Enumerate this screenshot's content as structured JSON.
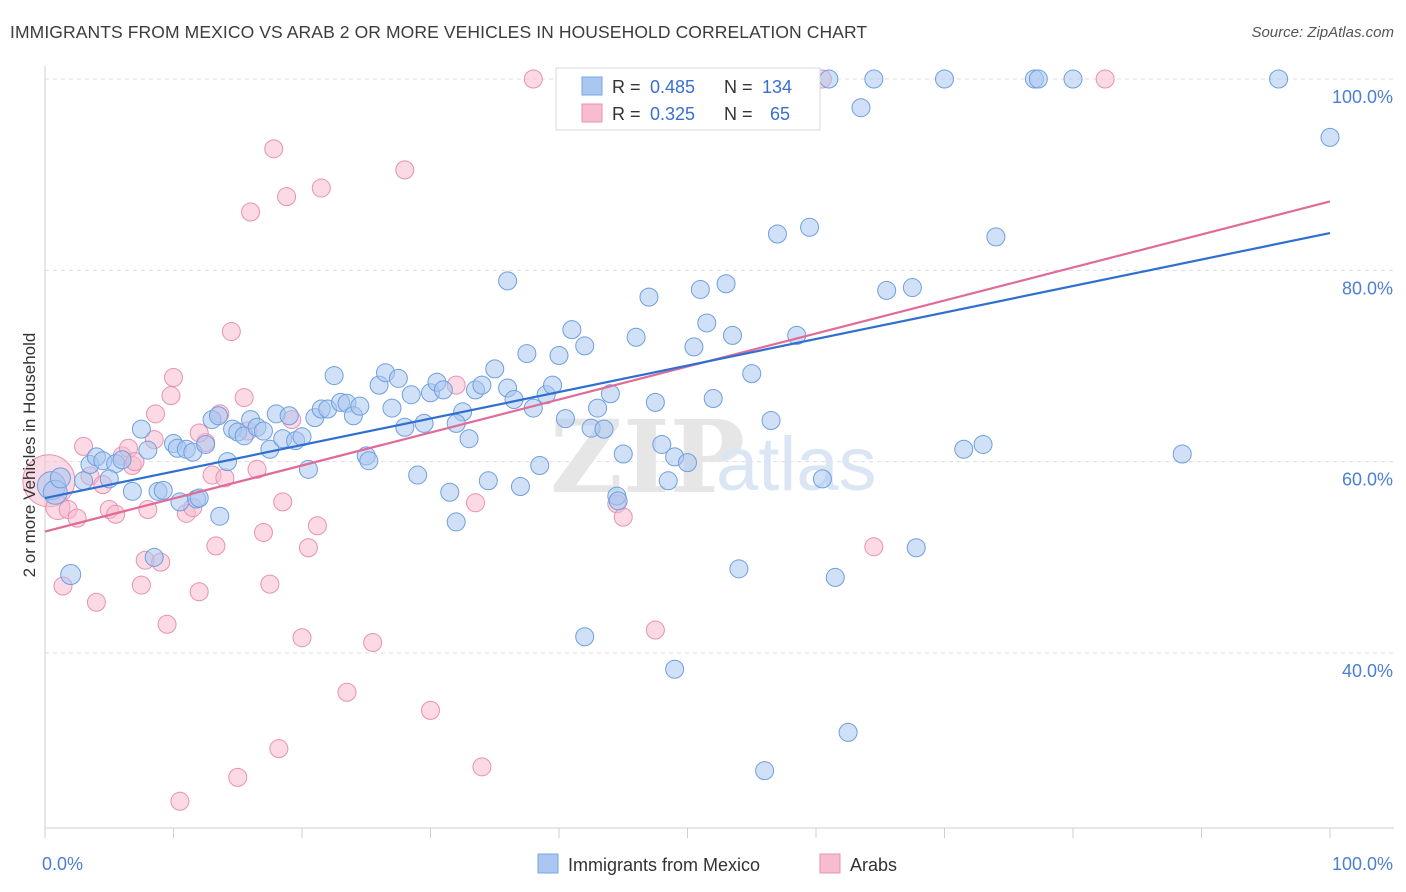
{
  "header": {
    "title": "IMMIGRANTS FROM MEXICO VS ARAB 2 OR MORE VEHICLES IN HOUSEHOLD CORRELATION CHART",
    "source": "Source: ZipAtlas.com"
  },
  "watermark": {
    "zip": "ZIP",
    "atlas": "atlas"
  },
  "legend": {
    "r_label": "R =",
    "n_label": "N =",
    "entries": [
      {
        "r": "0.485",
        "n": "134",
        "color": "#a9c7f0",
        "stroke": "#7aa6e0"
      },
      {
        "r": "0.325",
        "n": "65",
        "color": "#f7bcd0",
        "stroke": "#e891b0"
      }
    ]
  },
  "bottom_legend": [
    {
      "label": "Immigrants from Mexico",
      "color": "#a9c7f0",
      "stroke": "#7aa6e0"
    },
    {
      "label": "Arabs",
      "color": "#f7bcd0",
      "stroke": "#e891b0"
    }
  ],
  "chart_data": {
    "type": "scatter",
    "xlabel": "",
    "ylabel": "2 or more Vehicles in Household",
    "xlim": [
      0,
      100
    ],
    "ylim": [
      21,
      101
    ],
    "x_tick_labels": [
      {
        "value": 0,
        "label": "0.0%"
      },
      {
        "value": 100,
        "label": "100.0%"
      }
    ],
    "y_tick_labels": [
      {
        "value": 40,
        "label": "40.0%"
      },
      {
        "value": 60,
        "label": "60.0%"
      },
      {
        "value": 80,
        "label": "80.0%"
      },
      {
        "value": 100,
        "label": "100.0%"
      }
    ],
    "x_minor_ticks": [
      0,
      10,
      20,
      30,
      40,
      50,
      60,
      70,
      80,
      90,
      100
    ],
    "grid": true,
    "colors": {
      "blue_fill": "#a9c7f0",
      "blue_stroke": "#6f9fe0",
      "blue_line": "#2f6fcf",
      "pink_fill": "#f7bcd0",
      "pink_stroke": "#e891b0",
      "pink_line": "#e06b97",
      "axis_text": "#4a7fd4"
    },
    "series": [
      {
        "name": "Immigrants from Mexico",
        "color": "#a9c7f0",
        "trend": {
          "x": [
            0,
            100
          ],
          "y": [
            56.2,
            83.9
          ]
        },
        "points": [
          [
            0.5,
            57.5,
            14
          ],
          [
            0.8,
            56.8,
            12
          ],
          [
            1.2,
            58.3,
            10
          ],
          [
            2.0,
            48.2,
            10
          ],
          [
            3.0,
            58.0,
            9
          ],
          [
            3.5,
            59.7,
            9
          ],
          [
            4.0,
            60.5,
            9
          ],
          [
            4.5,
            60.1,
            9
          ],
          [
            5.5,
            59.8,
            9
          ],
          [
            6.0,
            60.2,
            9
          ],
          [
            5.0,
            58.2,
            9
          ],
          [
            6.8,
            56.9,
            9
          ],
          [
            7.5,
            63.4,
            9
          ],
          [
            8.0,
            61.2,
            9
          ],
          [
            8.5,
            50.0,
            9
          ],
          [
            8.8,
            56.9,
            9
          ],
          [
            9.2,
            57.0,
            9
          ],
          [
            10.0,
            61.9,
            9
          ],
          [
            10.3,
            61.4,
            9
          ],
          [
            10.5,
            55.8,
            9
          ],
          [
            11.0,
            61.3,
            9
          ],
          [
            11.5,
            61.0,
            9
          ],
          [
            11.8,
            56.1,
            9
          ],
          [
            12.0,
            56.2,
            9
          ],
          [
            12.5,
            61.8,
            9
          ],
          [
            13.0,
            64.4,
            9
          ],
          [
            13.5,
            64.8,
            9
          ],
          [
            13.6,
            54.3,
            9
          ],
          [
            14.2,
            60.0,
            9
          ],
          [
            14.6,
            63.4,
            9
          ],
          [
            15.0,
            63.1,
            9
          ],
          [
            15.5,
            62.7,
            9
          ],
          [
            16.0,
            64.4,
            9
          ],
          [
            16.5,
            63.6,
            9
          ],
          [
            17.0,
            63.2,
            9
          ],
          [
            17.5,
            61.3,
            9
          ],
          [
            18.0,
            65.0,
            9
          ],
          [
            18.5,
            62.4,
            9
          ],
          [
            19.0,
            64.8,
            9
          ],
          [
            19.5,
            62.2,
            9
          ],
          [
            20.0,
            62.6,
            9
          ],
          [
            20.5,
            59.2,
            9
          ],
          [
            21.0,
            64.6,
            9
          ],
          [
            21.5,
            65.5,
            9
          ],
          [
            22.0,
            65.5,
            9
          ],
          [
            22.5,
            69.0,
            9
          ],
          [
            23.0,
            66.2,
            9
          ],
          [
            23.5,
            66.1,
            9
          ],
          [
            24.0,
            64.8,
            9
          ],
          [
            24.5,
            65.8,
            9
          ],
          [
            25.0,
            60.6,
            9
          ],
          [
            25.2,
            60.1,
            9
          ],
          [
            26.0,
            68.0,
            9
          ],
          [
            26.5,
            69.3,
            9
          ],
          [
            27.0,
            65.6,
            9
          ],
          [
            27.5,
            68.7,
            9
          ],
          [
            28.0,
            63.6,
            9
          ],
          [
            28.5,
            67.0,
            9
          ],
          [
            29.0,
            58.6,
            9
          ],
          [
            29.5,
            64.0,
            9
          ],
          [
            30.0,
            67.2,
            9
          ],
          [
            30.5,
            68.3,
            9
          ],
          [
            31.0,
            67.5,
            9
          ],
          [
            31.5,
            56.8,
            9
          ],
          [
            32.0,
            53.7,
            9
          ],
          [
            32.5,
            65.2,
            9
          ],
          [
            33.0,
            62.4,
            9
          ],
          [
            33.5,
            67.5,
            9
          ],
          [
            34.0,
            68.0,
            9
          ],
          [
            34.5,
            58.0,
            9
          ],
          [
            35.0,
            69.7,
            9
          ],
          [
            36.0,
            67.7,
            9
          ],
          [
            36.5,
            66.5,
            9
          ],
          [
            37.0,
            57.4,
            9
          ],
          [
            37.5,
            71.3,
            9
          ],
          [
            38.0,
            65.6,
            9
          ],
          [
            38.5,
            59.6,
            9
          ],
          [
            39.0,
            67.0,
            9
          ],
          [
            39.5,
            68.0,
            9
          ],
          [
            40.0,
            71.1,
            9
          ],
          [
            40.5,
            64.5,
            9
          ],
          [
            41.0,
            73.8,
            9
          ],
          [
            42.0,
            72.1,
            9
          ],
          [
            42.5,
            63.5,
            9
          ],
          [
            43.0,
            65.6,
            9
          ],
          [
            43.5,
            63.4,
            9
          ],
          [
            44.0,
            67.1,
            9
          ],
          [
            44.5,
            56.4,
            9
          ],
          [
            44.6,
            55.9,
            9
          ],
          [
            45.0,
            60.8,
            9
          ],
          [
            46.0,
            73.0,
            9
          ],
          [
            47.0,
            77.2,
            9
          ],
          [
            47.5,
            66.2,
            9
          ],
          [
            48.0,
            61.8,
            9
          ],
          [
            48.5,
            58.0,
            9
          ],
          [
            49.0,
            60.5,
            9
          ],
          [
            50.0,
            59.9,
            9
          ],
          [
            50.5,
            72.0,
            9
          ],
          [
            51.0,
            78.0,
            9
          ],
          [
            51.5,
            74.5,
            9
          ],
          [
            52.0,
            66.6,
            9
          ],
          [
            53.0,
            78.6,
            9
          ],
          [
            53.5,
            73.2,
            9
          ],
          [
            54.0,
            48.8,
            9
          ],
          [
            55.0,
            69.2,
            9
          ],
          [
            56.5,
            64.3,
            9
          ],
          [
            57.0,
            83.8,
            9
          ],
          [
            58.5,
            73.2,
            9
          ],
          [
            59.5,
            84.5,
            9
          ],
          [
            60.5,
            58.2,
            9
          ],
          [
            61.5,
            47.9,
            9
          ],
          [
            62.5,
            31.7,
            9
          ],
          [
            63.5,
            97.0,
            9
          ],
          [
            64.5,
            100.0,
            9
          ],
          [
            65.5,
            77.9,
            9
          ],
          [
            67.5,
            78.2,
            9
          ],
          [
            67.8,
            51.0,
            9
          ],
          [
            70.0,
            100.0,
            9
          ],
          [
            71.5,
            61.3,
            9
          ],
          [
            73.0,
            61.8,
            9
          ],
          [
            74.0,
            83.5,
            9
          ],
          [
            77.0,
            100.0,
            9
          ],
          [
            77.3,
            100.0,
            9
          ],
          [
            80.0,
            100.0,
            9
          ],
          [
            88.5,
            60.8,
            9
          ],
          [
            96.0,
            100.0,
            9
          ],
          [
            100.0,
            93.9,
            9
          ],
          [
            42.0,
            41.7,
            9
          ],
          [
            49.0,
            38.3,
            9
          ],
          [
            56.0,
            27.7,
            9
          ],
          [
            36.0,
            78.9,
            9
          ],
          [
            56.5,
            100.0,
            9
          ],
          [
            61.0,
            100.0,
            9
          ],
          [
            32.0,
            64.0,
            9
          ]
        ]
      },
      {
        "name": "Arabs",
        "color": "#f7bcd0",
        "trend": {
          "x": [
            0,
            100
          ],
          "y": [
            52.7,
            87.2
          ]
        },
        "points": [
          [
            0.3,
            58.0,
            26
          ],
          [
            1.0,
            55.2,
            12
          ],
          [
            1.4,
            47.0,
            9
          ],
          [
            1.8,
            55.0,
            9
          ],
          [
            2.5,
            54.1,
            9
          ],
          [
            3.0,
            61.6,
            9
          ],
          [
            3.5,
            58.5,
            9
          ],
          [
            4.0,
            45.3,
            9
          ],
          [
            4.5,
            57.6,
            9
          ],
          [
            5.0,
            55.0,
            9
          ],
          [
            5.5,
            54.5,
            9
          ],
          [
            6.0,
            60.6,
            9
          ],
          [
            6.5,
            61.4,
            9
          ],
          [
            6.8,
            59.6,
            9
          ],
          [
            7.5,
            47.1,
            9
          ],
          [
            7.8,
            49.7,
            9
          ],
          [
            8.0,
            55.0,
            9
          ],
          [
            8.5,
            62.3,
            9
          ],
          [
            8.6,
            65.0,
            9
          ],
          [
            9.0,
            49.5,
            9
          ],
          [
            9.5,
            43.0,
            9
          ],
          [
            9.8,
            66.9,
            9
          ],
          [
            10.0,
            68.8,
            9
          ],
          [
            10.5,
            24.5,
            9
          ],
          [
            11.0,
            54.6,
            9
          ],
          [
            11.5,
            55.2,
            9
          ],
          [
            12.0,
            46.4,
            9
          ],
          [
            12.5,
            62.0,
            9
          ],
          [
            13.0,
            58.6,
            9
          ],
          [
            13.3,
            51.2,
            9
          ],
          [
            13.6,
            65.0,
            9
          ],
          [
            14.0,
            58.3,
            9
          ],
          [
            14.5,
            73.6,
            9
          ],
          [
            15.0,
            27.0,
            9
          ],
          [
            15.5,
            66.7,
            9
          ],
          [
            16.0,
            86.1,
            9
          ],
          [
            16.5,
            59.2,
            9
          ],
          [
            17.0,
            52.6,
            9
          ],
          [
            17.5,
            47.2,
            9
          ],
          [
            17.8,
            92.7,
            9
          ],
          [
            18.2,
            30.0,
            9
          ],
          [
            18.8,
            87.7,
            9
          ],
          [
            19.2,
            64.4,
            9
          ],
          [
            20.0,
            41.6,
            9
          ],
          [
            20.5,
            51.0,
            9
          ],
          [
            21.2,
            53.3,
            9
          ],
          [
            21.5,
            88.6,
            9
          ],
          [
            23.5,
            35.9,
            9
          ],
          [
            25.5,
            41.1,
            9
          ],
          [
            28.0,
            90.5,
            9
          ],
          [
            30.0,
            34.0,
            9
          ],
          [
            32.0,
            68.0,
            9
          ],
          [
            33.5,
            55.7,
            9
          ],
          [
            34.0,
            28.1,
            9
          ],
          [
            38.0,
            100.0,
            9
          ],
          [
            44.5,
            55.6,
            9
          ],
          [
            45.0,
            54.2,
            9
          ],
          [
            47.5,
            42.4,
            9
          ],
          [
            60.5,
            100.0,
            9
          ],
          [
            64.5,
            51.1,
            9
          ],
          [
            82.5,
            100.0,
            9
          ],
          [
            7.0,
            60.0,
            9
          ],
          [
            12.0,
            63.0,
            9
          ],
          [
            15.8,
            63.2,
            9
          ],
          [
            18.5,
            55.8,
            9
          ]
        ]
      }
    ]
  }
}
